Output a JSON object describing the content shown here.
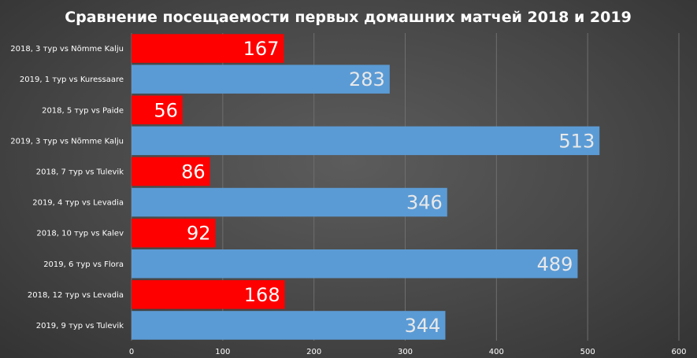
{
  "chart_data": {
    "type": "bar",
    "orientation": "horizontal",
    "title": "Сравнение посещаемости первых домашних матчей 2018 и 2019",
    "categories": [
      "2018, 3 тур vs Nõmme Kalju",
      "2019, 1 тур vs Kuressaare",
      "2018, 5 тур vs Paide",
      "2019, 3 тур vs Nõmme Kalju",
      "2018, 7 тур vs Tulevik",
      "2019, 4 тур vs Levadia",
      "2018, 10 тур vs Kalev",
      "2019, 6 тур vs Flora",
      "2018, 12 тур vs Levadia",
      "2019, 9 тур vs Tulevik"
    ],
    "values": [
      167,
      283,
      56,
      513,
      86,
      346,
      92,
      489,
      168,
      344
    ],
    "bar_colors": [
      "#ff0000",
      "#5b9bd5",
      "#ff0000",
      "#5b9bd5",
      "#ff0000",
      "#5b9bd5",
      "#ff0000",
      "#5b9bd5",
      "#ff0000",
      "#5b9bd5"
    ],
    "label_colors": [
      "#ffffff",
      "#e8e8e8",
      "#ffffff",
      "#e8e8e8",
      "#ffffff",
      "#e8e8e8",
      "#ffffff",
      "#e8e8e8",
      "#ffffff",
      "#e8e8e8"
    ],
    "xlim": [
      0,
      600
    ],
    "xticks": [
      0,
      100,
      200,
      300,
      400,
      500,
      600
    ],
    "grid": true,
    "gridline_color": "#6e6e6e"
  }
}
